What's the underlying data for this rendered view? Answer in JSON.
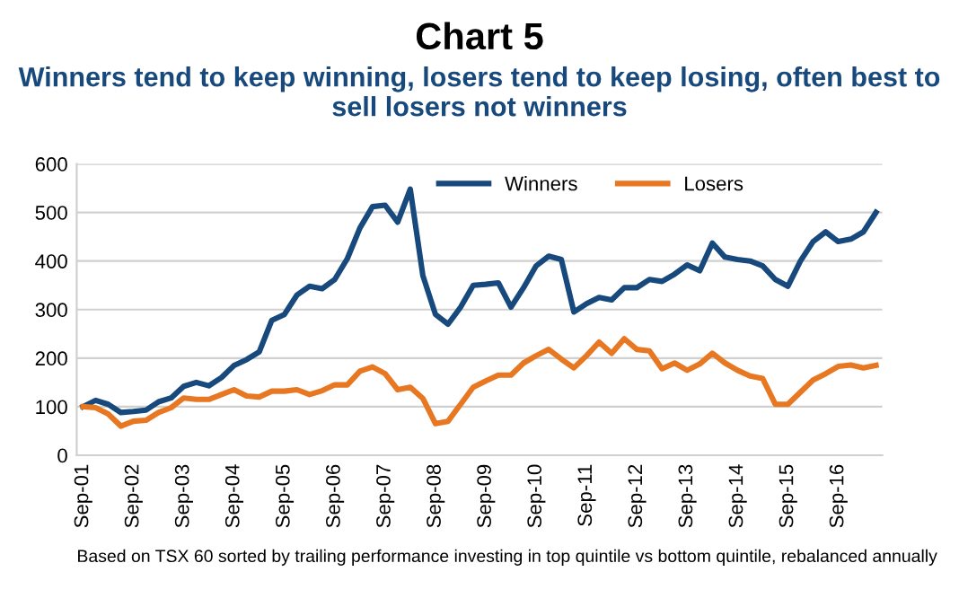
{
  "chart_data": {
    "type": "line",
    "title": "Chart 5",
    "subtitle": "Winners tend to keep winning, losers tend to keep losing, often best to sell losers not winners",
    "categories": [
      "Sep-01",
      null,
      null,
      null,
      "Sep-02",
      null,
      null,
      null,
      "Sep-03",
      null,
      null,
      null,
      "Sep-04",
      null,
      null,
      null,
      "Sep-05",
      null,
      null,
      null,
      "Sep-06",
      null,
      null,
      null,
      "Sep-07",
      null,
      null,
      null,
      "Sep-08",
      null,
      null,
      null,
      "Sep-09",
      null,
      null,
      null,
      "Sep-10",
      null,
      null,
      null,
      "Sep-11",
      null,
      null,
      null,
      "Sep-12",
      null,
      null,
      null,
      "Sep-13",
      null,
      null,
      null,
      "Sep-14",
      null,
      null,
      null,
      "Sep-15",
      null,
      null,
      null,
      "Sep-16",
      null,
      null,
      null
    ],
    "series": [
      {
        "name": "Winners",
        "color": "#17497d",
        "values": [
          100,
          113,
          105,
          88,
          90,
          93,
          110,
          118,
          142,
          150,
          143,
          160,
          185,
          197,
          213,
          278,
          290,
          330,
          348,
          343,
          362,
          405,
          468,
          512,
          515,
          480,
          548,
          370,
          290,
          270,
          305,
          350,
          352,
          355,
          305,
          345,
          390,
          410,
          403,
          295,
          312,
          325,
          320,
          345,
          345,
          362,
          358,
          373,
          392,
          380,
          437,
          408,
          403,
          400,
          390,
          362,
          348,
          400,
          440,
          460,
          440,
          445,
          460,
          500
        ]
      },
      {
        "name": "Losers",
        "color": "#e87722",
        "values": [
          100,
          98,
          85,
          60,
          70,
          72,
          88,
          98,
          118,
          115,
          115,
          125,
          135,
          122,
          120,
          132,
          132,
          135,
          125,
          133,
          145,
          145,
          173,
          182,
          168,
          135,
          140,
          117,
          65,
          70,
          105,
          140,
          153,
          165,
          165,
          190,
          205,
          218,
          198,
          180,
          205,
          233,
          210,
          240,
          218,
          215,
          178,
          190,
          175,
          188,
          210,
          190,
          175,
          163,
          158,
          105,
          105,
          130,
          155,
          168,
          183,
          186,
          180,
          185
        ]
      }
    ],
    "ylim": [
      0,
      600
    ],
    "yticks": [
      0,
      100,
      200,
      300,
      400,
      500,
      600
    ],
    "grid": "y",
    "legend": "top right",
    "marker": "none",
    "line_style": "solid",
    "annotations": [
      "Based on TSX 60 sorted by trailing performance investing in top quintile vs bottom quintile, rebalanced annually"
    ]
  }
}
